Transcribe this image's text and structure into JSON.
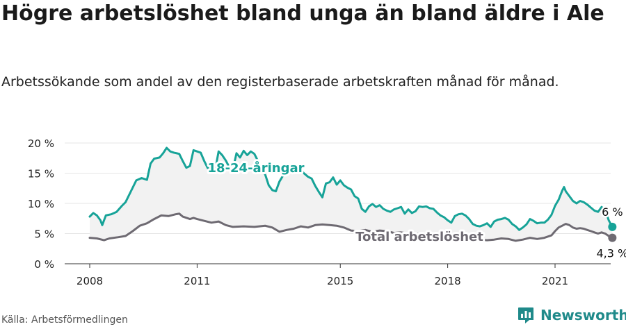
{
  "title": "Högre arbetslöshet bland unga än bland äldre i Ale",
  "subtitle": "Arbetssökande som andel av den registerbaserade arbetskraften månad för månad.",
  "source": "Källa: Arbetsförmedlingen",
  "brand": {
    "name": "Newsworthy",
    "icon": "bar-chart-logo-icon"
  },
  "colors": {
    "youth": "#17a398",
    "total": "#6e6a72",
    "band": "#f2f2f2",
    "grid": "#e6e6e6"
  },
  "chart_data": {
    "type": "line",
    "x_axis": {
      "min": 2008,
      "max": 2022.6,
      "ticks": [
        "2008",
        "2011",
        "2015",
        "2018",
        "2021"
      ],
      "tick_values": [
        2008,
        2011,
        2015,
        2018,
        2021
      ]
    },
    "y_axis": {
      "min": 0,
      "max": 20,
      "ticks": [
        "0 %",
        "5 %",
        "10 %",
        "15 %",
        "20 %"
      ],
      "tick_values": [
        0,
        5,
        10,
        15,
        20
      ]
    },
    "grid": true,
    "series": [
      {
        "name": "18-24-åringar",
        "end_label": "6 %",
        "points": [
          [
            2008.0,
            7.8
          ],
          [
            2008.1,
            8.4
          ],
          [
            2008.2,
            8.0
          ],
          [
            2008.3,
            7.2
          ],
          [
            2008.35,
            6.4
          ],
          [
            2008.45,
            8.0
          ],
          [
            2008.6,
            8.2
          ],
          [
            2008.75,
            8.6
          ],
          [
            2008.9,
            9.6
          ],
          [
            2009.0,
            10.2
          ],
          [
            2009.15,
            12.0
          ],
          [
            2009.3,
            13.8
          ],
          [
            2009.45,
            14.2
          ],
          [
            2009.6,
            13.9
          ],
          [
            2009.7,
            16.6
          ],
          [
            2009.8,
            17.4
          ],
          [
            2009.95,
            17.6
          ],
          [
            2010.05,
            18.3
          ],
          [
            2010.15,
            19.2
          ],
          [
            2010.25,
            18.6
          ],
          [
            2010.35,
            18.4
          ],
          [
            2010.5,
            18.2
          ],
          [
            2010.6,
            17.0
          ],
          [
            2010.7,
            15.9
          ],
          [
            2010.8,
            16.2
          ],
          [
            2010.9,
            18.8
          ],
          [
            2011.0,
            18.6
          ],
          [
            2011.1,
            18.4
          ],
          [
            2011.2,
            17.0
          ],
          [
            2011.3,
            15.8
          ],
          [
            2011.4,
            16.1
          ],
          [
            2011.5,
            15.4
          ],
          [
            2011.6,
            18.6
          ],
          [
            2011.7,
            18.0
          ],
          [
            2011.8,
            17.1
          ],
          [
            2011.9,
            16.0
          ],
          [
            2012.0,
            15.6
          ],
          [
            2012.1,
            18.3
          ],
          [
            2012.2,
            17.6
          ],
          [
            2012.3,
            18.7
          ],
          [
            2012.4,
            18.0
          ],
          [
            2012.5,
            18.6
          ],
          [
            2012.6,
            18.2
          ],
          [
            2012.7,
            17.0
          ],
          [
            2012.8,
            15.6
          ],
          [
            2012.9,
            14.8
          ],
          [
            2013.0,
            13.0
          ],
          [
            2013.1,
            12.2
          ],
          [
            2013.2,
            12.0
          ],
          [
            2013.3,
            13.6
          ],
          [
            2013.4,
            14.6
          ],
          [
            2013.5,
            15.2
          ],
          [
            2013.6,
            15.6
          ],
          [
            2013.7,
            15.4
          ],
          [
            2013.8,
            15.8
          ],
          [
            2013.9,
            15.5
          ],
          [
            2014.0,
            14.9
          ],
          [
            2014.1,
            14.4
          ],
          [
            2014.2,
            14.1
          ],
          [
            2014.3,
            12.9
          ],
          [
            2014.4,
            11.9
          ],
          [
            2014.5,
            11.0
          ],
          [
            2014.6,
            13.3
          ],
          [
            2014.7,
            13.5
          ],
          [
            2014.8,
            14.3
          ],
          [
            2014.9,
            13.1
          ],
          [
            2015.0,
            13.8
          ],
          [
            2015.1,
            13.0
          ],
          [
            2015.2,
            12.6
          ],
          [
            2015.3,
            12.3
          ],
          [
            2015.4,
            11.2
          ],
          [
            2015.5,
            10.8
          ],
          [
            2015.6,
            9.1
          ],
          [
            2015.7,
            8.6
          ],
          [
            2015.8,
            9.5
          ],
          [
            2015.9,
            9.9
          ],
          [
            2016.0,
            9.4
          ],
          [
            2016.1,
            9.7
          ],
          [
            2016.2,
            9.1
          ],
          [
            2016.3,
            8.8
          ],
          [
            2016.4,
            8.6
          ],
          [
            2016.5,
            9.0
          ],
          [
            2016.6,
            9.2
          ],
          [
            2016.7,
            9.4
          ],
          [
            2016.8,
            8.3
          ],
          [
            2016.9,
            9.0
          ],
          [
            2017.0,
            8.4
          ],
          [
            2017.1,
            8.7
          ],
          [
            2017.2,
            9.5
          ],
          [
            2017.3,
            9.4
          ],
          [
            2017.4,
            9.5
          ],
          [
            2017.5,
            9.2
          ],
          [
            2017.6,
            9.1
          ],
          [
            2017.7,
            8.5
          ],
          [
            2017.8,
            8.0
          ],
          [
            2017.9,
            7.7
          ],
          [
            2018.0,
            7.2
          ],
          [
            2018.1,
            6.8
          ],
          [
            2018.2,
            7.9
          ],
          [
            2018.3,
            8.2
          ],
          [
            2018.4,
            8.3
          ],
          [
            2018.5,
            8.0
          ],
          [
            2018.6,
            7.4
          ],
          [
            2018.7,
            6.6
          ],
          [
            2018.8,
            6.3
          ],
          [
            2018.9,
            6.2
          ],
          [
            2019.0,
            6.4
          ],
          [
            2019.1,
            6.7
          ],
          [
            2019.2,
            6.1
          ],
          [
            2019.3,
            7.0
          ],
          [
            2019.4,
            7.3
          ],
          [
            2019.5,
            7.4
          ],
          [
            2019.6,
            7.6
          ],
          [
            2019.7,
            7.3
          ],
          [
            2019.8,
            6.6
          ],
          [
            2019.9,
            6.2
          ],
          [
            2020.0,
            5.6
          ],
          [
            2020.1,
            6.0
          ],
          [
            2020.2,
            6.5
          ],
          [
            2020.3,
            7.4
          ],
          [
            2020.4,
            7.1
          ],
          [
            2020.5,
            6.7
          ],
          [
            2020.6,
            6.8
          ],
          [
            2020.7,
            6.8
          ],
          [
            2020.8,
            7.3
          ],
          [
            2020.9,
            8.1
          ],
          [
            2021.0,
            9.6
          ],
          [
            2021.1,
            10.6
          ],
          [
            2021.2,
            12.1
          ],
          [
            2021.25,
            12.7
          ],
          [
            2021.3,
            12.0
          ],
          [
            2021.4,
            11.2
          ],
          [
            2021.5,
            10.4
          ],
          [
            2021.6,
            10.0
          ],
          [
            2021.7,
            10.4
          ],
          [
            2021.8,
            10.2
          ],
          [
            2021.9,
            9.8
          ],
          [
            2022.0,
            9.3
          ],
          [
            2022.1,
            8.8
          ],
          [
            2022.2,
            8.6
          ],
          [
            2022.3,
            9.4
          ],
          [
            2022.4,
            8.9
          ],
          [
            2022.5,
            7.2
          ],
          [
            2022.6,
            6.1
          ]
        ]
      },
      {
        "name": "Total arbetslöshet",
        "end_label": "4,3 %",
        "points": [
          [
            2008.0,
            4.3
          ],
          [
            2008.2,
            4.2
          ],
          [
            2008.4,
            3.9
          ],
          [
            2008.55,
            4.2
          ],
          [
            2008.8,
            4.4
          ],
          [
            2009.0,
            4.6
          ],
          [
            2009.2,
            5.4
          ],
          [
            2009.4,
            6.3
          ],
          [
            2009.6,
            6.7
          ],
          [
            2009.8,
            7.4
          ],
          [
            2010.0,
            8.0
          ],
          [
            2010.2,
            7.9
          ],
          [
            2010.4,
            8.2
          ],
          [
            2010.5,
            8.3
          ],
          [
            2010.6,
            7.8
          ],
          [
            2010.8,
            7.4
          ],
          [
            2010.9,
            7.6
          ],
          [
            2011.0,
            7.4
          ],
          [
            2011.2,
            7.1
          ],
          [
            2011.4,
            6.8
          ],
          [
            2011.6,
            7.0
          ],
          [
            2011.8,
            6.4
          ],
          [
            2012.0,
            6.1
          ],
          [
            2012.3,
            6.2
          ],
          [
            2012.6,
            6.1
          ],
          [
            2012.9,
            6.3
          ],
          [
            2013.1,
            6.0
          ],
          [
            2013.3,
            5.3
          ],
          [
            2013.5,
            5.6
          ],
          [
            2013.7,
            5.8
          ],
          [
            2013.9,
            6.2
          ],
          [
            2014.1,
            6.0
          ],
          [
            2014.3,
            6.4
          ],
          [
            2014.5,
            6.5
          ],
          [
            2014.7,
            6.4
          ],
          [
            2014.9,
            6.3
          ],
          [
            2015.1,
            6.0
          ],
          [
            2015.3,
            5.5
          ],
          [
            2015.5,
            5.4
          ],
          [
            2015.7,
            5.6
          ],
          [
            2015.9,
            5.3
          ],
          [
            2016.1,
            5.5
          ],
          [
            2016.3,
            5.4
          ],
          [
            2016.5,
            5.1
          ],
          [
            2016.7,
            5.2
          ],
          [
            2016.9,
            5.0
          ],
          [
            2017.1,
            4.9
          ],
          [
            2017.3,
            5.0
          ],
          [
            2017.5,
            4.8
          ],
          [
            2017.7,
            4.6
          ],
          [
            2017.9,
            4.5
          ],
          [
            2018.1,
            4.4
          ],
          [
            2018.3,
            4.5
          ],
          [
            2018.5,
            4.4
          ],
          [
            2018.7,
            4.2
          ],
          [
            2018.9,
            4.0
          ],
          [
            2019.1,
            3.9
          ],
          [
            2019.3,
            4.0
          ],
          [
            2019.5,
            4.2
          ],
          [
            2019.7,
            4.1
          ],
          [
            2019.9,
            3.8
          ],
          [
            2020.1,
            4.0
          ],
          [
            2020.3,
            4.3
          ],
          [
            2020.5,
            4.1
          ],
          [
            2020.7,
            4.3
          ],
          [
            2020.9,
            4.7
          ],
          [
            2021.0,
            5.4
          ],
          [
            2021.1,
            6.0
          ],
          [
            2021.2,
            6.3
          ],
          [
            2021.3,
            6.6
          ],
          [
            2021.4,
            6.4
          ],
          [
            2021.5,
            6.0
          ],
          [
            2021.6,
            5.8
          ],
          [
            2021.7,
            5.9
          ],
          [
            2021.8,
            5.8
          ],
          [
            2021.9,
            5.6
          ],
          [
            2022.0,
            5.4
          ],
          [
            2022.1,
            5.2
          ],
          [
            2022.2,
            5.0
          ],
          [
            2022.3,
            5.2
          ],
          [
            2022.4,
            5.0
          ],
          [
            2022.5,
            4.6
          ],
          [
            2022.6,
            4.3
          ]
        ]
      }
    ]
  }
}
